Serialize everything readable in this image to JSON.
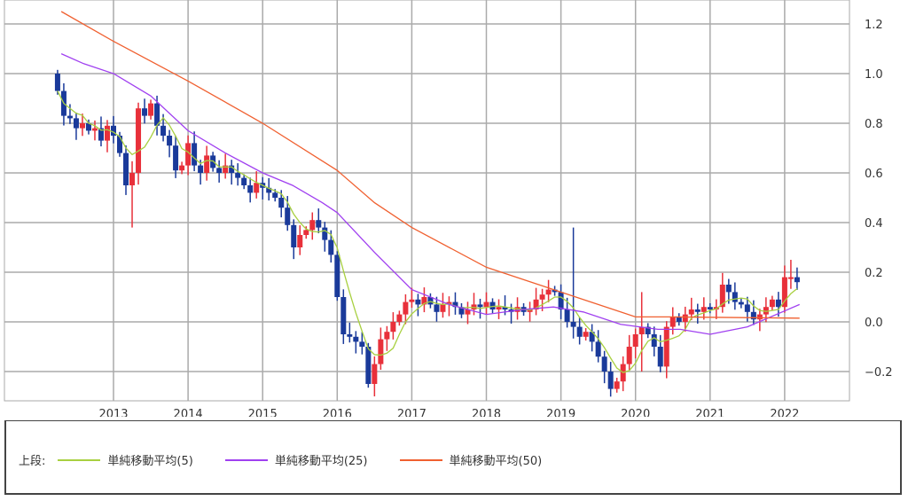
{
  "chart_data": {
    "type": "candlestick",
    "start_month": "2012-04",
    "xtick_labels": [
      "2013",
      "2014",
      "2015",
      "2016",
      "2017",
      "2018",
      "2019",
      "2020",
      "2021",
      "2022"
    ],
    "ytick_labels": [
      "1.2",
      "1.0",
      "0.8",
      "0.6",
      "0.4",
      "0.2",
      "0.0",
      "−0.2"
    ],
    "yticks": [
      1.2,
      1.0,
      0.8,
      0.6,
      0.4,
      0.2,
      0.0,
      -0.2
    ],
    "ylim": [
      -0.31,
      1.33
    ],
    "xlim": [
      2012.0,
      2022.85
    ],
    "first_open": 1.0,
    "closes": [
      0.93,
      0.83,
      0.82,
      0.78,
      0.8,
      0.77,
      0.78,
      0.73,
      0.79,
      0.75,
      0.68,
      0.55,
      0.6,
      0.86,
      0.83,
      0.88,
      0.79,
      0.75,
      0.71,
      0.61,
      0.63,
      0.72,
      0.63,
      0.6,
      0.67,
      0.62,
      0.6,
      0.63,
      0.6,
      0.58,
      0.55,
      0.52,
      0.56,
      0.54,
      0.52,
      0.5,
      0.46,
      0.39,
      0.3,
      0.35,
      0.37,
      0.41,
      0.38,
      0.33,
      0.27,
      0.1,
      -0.05,
      -0.06,
      -0.08,
      -0.1,
      -0.25,
      -0.17,
      -0.07,
      -0.04,
      0.0,
      0.03,
      0.08,
      0.09,
      0.07,
      0.1,
      0.07,
      0.04,
      0.07,
      0.08,
      0.06,
      0.03,
      0.05,
      0.07,
      0.06,
      0.08,
      0.05,
      0.06,
      0.05,
      0.04,
      0.06,
      0.04,
      0.05,
      0.09,
      0.11,
      0.13,
      0.12,
      0.05,
      0.0,
      -0.02,
      -0.06,
      -0.04,
      -0.08,
      -0.14,
      -0.2,
      -0.27,
      -0.24,
      -0.17,
      -0.1,
      -0.05,
      -0.02,
      -0.05,
      -0.1,
      -0.18,
      -0.02,
      0.02,
      0.0,
      0.03,
      0.05,
      0.04,
      0.06,
      0.05,
      0.06,
      0.15,
      0.12,
      0.08,
      0.07,
      0.04,
      0.01,
      0.03,
      0.06,
      0.09,
      0.06,
      0.18,
      0.18,
      0.16
    ],
    "wick_overrides": [
      {
        "index": 12,
        "low": 0.38
      },
      {
        "index": 83,
        "high": 0.38
      },
      {
        "index": 94,
        "high": 0.12,
        "low": -0.2
      },
      {
        "index": 51,
        "low": -0.3
      },
      {
        "index": 118,
        "high": 0.25
      }
    ],
    "up_color": "#e8303a",
    "down_color": "#1a3a9a",
    "series": [
      {
        "name": "単純移動平均(5)",
        "color": "#a8d040",
        "computed_sma": 5
      },
      {
        "name": "単純移動平均(25)",
        "color": "#a040f0",
        "points": [
          [
            2012.3,
            1.08
          ],
          [
            2012.6,
            1.04
          ],
          [
            2013,
            1.0
          ],
          [
            2013.5,
            0.91
          ],
          [
            2014,
            0.77
          ],
          [
            2014.5,
            0.68
          ],
          [
            2015,
            0.6
          ],
          [
            2015.4,
            0.55
          ],
          [
            2015.8,
            0.48
          ],
          [
            2016,
            0.44
          ],
          [
            2016.5,
            0.28
          ],
          [
            2017,
            0.13
          ],
          [
            2017.5,
            0.07
          ],
          [
            2018,
            0.03
          ],
          [
            2018.5,
            0.05
          ],
          [
            2018.9,
            0.06
          ],
          [
            2019.3,
            0.04
          ],
          [
            2019.8,
            -0.01
          ],
          [
            2020.3,
            -0.03
          ],
          [
            2020.6,
            -0.03
          ],
          [
            2021,
            -0.05
          ],
          [
            2021.5,
            -0.02
          ],
          [
            2022.2,
            0.07
          ]
        ]
      },
      {
        "name": "単純移動平均(50)",
        "color": "#f06030",
        "points": [
          [
            2012.3,
            1.25
          ],
          [
            2013,
            1.13
          ],
          [
            2014,
            0.97
          ],
          [
            2015,
            0.8
          ],
          [
            2016,
            0.61
          ],
          [
            2016.5,
            0.48
          ],
          [
            2017,
            0.38
          ],
          [
            2018,
            0.22
          ],
          [
            2018.8,
            0.14
          ],
          [
            2019.2,
            0.1
          ],
          [
            2019.8,
            0.04
          ],
          [
            2020,
            0.02
          ],
          [
            2020.5,
            0.02
          ],
          [
            2022.2,
            0.015
          ]
        ]
      }
    ],
    "legend_prefix": "上段:"
  }
}
